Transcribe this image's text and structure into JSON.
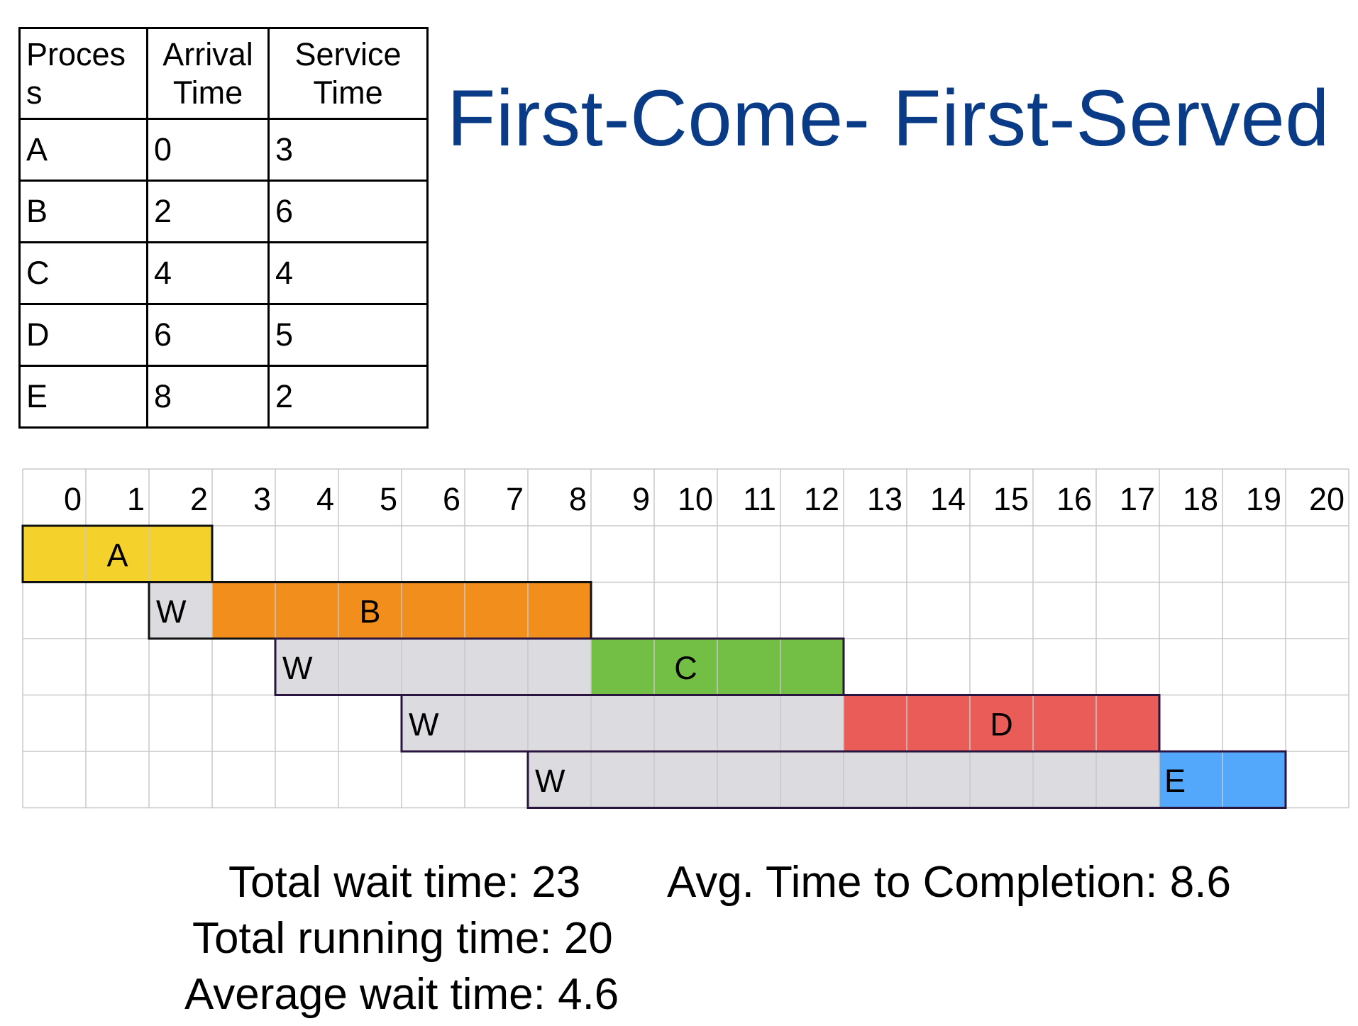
{
  "title": "First-Come- First-Served",
  "table": {
    "headers": [
      "Proces s",
      "Arrival Time",
      "Service Time"
    ],
    "rows": [
      {
        "process": "A",
        "arrival": "0",
        "service": "3"
      },
      {
        "process": "B",
        "arrival": "2",
        "service": "6"
      },
      {
        "process": "C",
        "arrival": "4",
        "service": "4"
      },
      {
        "process": "D",
        "arrival": "6",
        "service": "5"
      },
      {
        "process": "E",
        "arrival": "8",
        "service": "2"
      }
    ]
  },
  "timeline": {
    "ticks": [
      "0",
      "1",
      "2",
      "3",
      "4",
      "5",
      "6",
      "7",
      "8",
      "9",
      "10",
      "11",
      "12",
      "13",
      "14",
      "15",
      "16",
      "17",
      "18",
      "19",
      "20"
    ],
    "wait_label": "W",
    "processes": [
      {
        "label": "A",
        "wait_start": 0,
        "run_start": 0,
        "run_end": 3,
        "color": "#f5d22b"
      },
      {
        "label": "B",
        "wait_start": 2,
        "run_start": 3,
        "run_end": 9,
        "color": "#f28e1c"
      },
      {
        "label": "C",
        "wait_start": 4,
        "run_start": 9,
        "run_end": 13,
        "color": "#73be44"
      },
      {
        "label": "D",
        "wait_start": 6,
        "run_start": 13,
        "run_end": 18,
        "color": "#e95c58"
      },
      {
        "label": "E",
        "wait_start": 8,
        "run_start": 18,
        "run_end": 20,
        "color": "#53a8fb"
      }
    ],
    "wait_color": "#dcdce0",
    "grid_color": "#c8c8c8"
  },
  "stats": {
    "total_wait": "Total wait time: 23",
    "total_running": "Total running time: 20",
    "avg_wait": "Average wait time: 4.6",
    "avg_completion": "Avg. Time to Completion: 8.6"
  }
}
